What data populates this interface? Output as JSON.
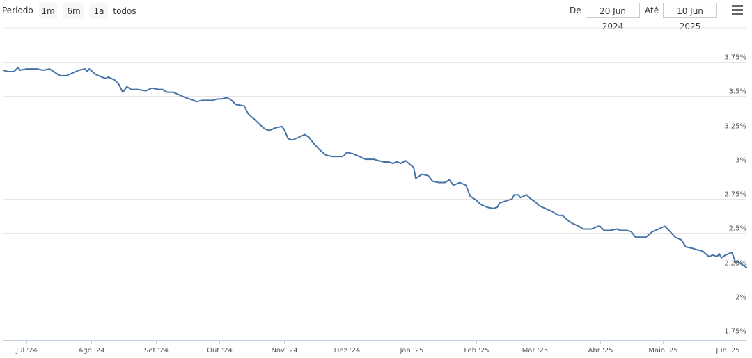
{
  "toolbar": {
    "range_label": "Periodo",
    "range_buttons": [
      "1m",
      "6m",
      "1a",
      "todos"
    ],
    "from_label": "De",
    "from_value": "20 Jun 2024",
    "to_label": "Até",
    "to_value": "10 Jun 2025",
    "menu_icon": "hamburger-menu-icon"
  },
  "chart_data": {
    "type": "line",
    "title": "",
    "xlabel": "",
    "ylabel": "",
    "xlim": [
      "2024-06-20",
      "2025-06-10"
    ],
    "ylim": [
      1.72,
      4.0
    ],
    "grid": true,
    "y_ticks": [
      {
        "value": 1.75,
        "label": "1.75%"
      },
      {
        "value": 2.0,
        "label": "2%"
      },
      {
        "value": 2.25,
        "label": "2.25%"
      },
      {
        "value": 2.5,
        "label": "2.5%"
      },
      {
        "value": 2.75,
        "label": "2.75%"
      },
      {
        "value": 3.0,
        "label": "3%"
      },
      {
        "value": 3.25,
        "label": "3.25%"
      },
      {
        "value": 3.5,
        "label": "3.5%"
      },
      {
        "value": 3.75,
        "label": "3.75%"
      }
    ],
    "x_ticks": [
      {
        "date": "2024-07-01",
        "label": "Jul '24"
      },
      {
        "date": "2024-08-01",
        "label": "Ago '24"
      },
      {
        "date": "2024-09-01",
        "label": "Set '24"
      },
      {
        "date": "2024-10-01",
        "label": "Out '24"
      },
      {
        "date": "2024-11-01",
        "label": "Nov '24"
      },
      {
        "date": "2024-12-01",
        "label": "Dez '24"
      },
      {
        "date": "2025-01-01",
        "label": "Jan '25"
      },
      {
        "date": "2025-02-01",
        "label": "Feb '25"
      },
      {
        "date": "2025-03-01",
        "label": "Mar '25"
      },
      {
        "date": "2025-04-01",
        "label": "Abr '25"
      },
      {
        "date": "2025-05-01",
        "label": "Maio '25"
      },
      {
        "date": "2025-06-01",
        "label": "Jun '25"
      }
    ],
    "series": [
      {
        "color": "#4572a7",
        "points": [
          [
            "2024-06-20",
            3.69
          ],
          [
            "2024-06-22",
            3.68
          ],
          [
            "2024-06-25",
            3.68
          ],
          [
            "2024-06-27",
            3.71
          ],
          [
            "2024-06-28",
            3.69
          ],
          [
            "2024-07-01",
            3.7
          ],
          [
            "2024-07-04",
            3.7
          ],
          [
            "2024-07-06",
            3.7
          ],
          [
            "2024-07-09",
            3.69
          ],
          [
            "2024-07-12",
            3.7
          ],
          [
            "2024-07-14",
            3.68
          ],
          [
            "2024-07-17",
            3.65
          ],
          [
            "2024-07-20",
            3.65
          ],
          [
            "2024-07-23",
            3.67
          ],
          [
            "2024-07-26",
            3.69
          ],
          [
            "2024-07-29",
            3.7
          ],
          [
            "2024-07-30",
            3.68
          ],
          [
            "2024-07-31",
            3.7
          ],
          [
            "2024-08-03",
            3.66
          ],
          [
            "2024-08-06",
            3.64
          ],
          [
            "2024-08-08",
            3.63
          ],
          [
            "2024-08-09",
            3.64
          ],
          [
            "2024-08-12",
            3.62
          ],
          [
            "2024-08-14",
            3.59
          ],
          [
            "2024-08-16",
            3.53
          ],
          [
            "2024-08-18",
            3.57
          ],
          [
            "2024-08-20",
            3.55
          ],
          [
            "2024-08-23",
            3.55
          ],
          [
            "2024-08-27",
            3.54
          ],
          [
            "2024-08-30",
            3.56
          ],
          [
            "2024-09-02",
            3.55
          ],
          [
            "2024-09-04",
            3.55
          ],
          [
            "2024-09-06",
            3.53
          ],
          [
            "2024-09-09",
            3.53
          ],
          [
            "2024-09-12",
            3.51
          ],
          [
            "2024-09-15",
            3.49
          ],
          [
            "2024-09-19",
            3.47
          ],
          [
            "2024-09-20",
            3.46
          ],
          [
            "2024-09-23",
            3.47
          ],
          [
            "2024-09-26",
            3.47
          ],
          [
            "2024-09-28",
            3.47
          ],
          [
            "2024-09-30",
            3.48
          ],
          [
            "2024-10-02",
            3.48
          ],
          [
            "2024-10-05",
            3.49
          ],
          [
            "2024-10-07",
            3.47
          ],
          [
            "2024-10-09",
            3.44
          ],
          [
            "2024-10-13",
            3.43
          ],
          [
            "2024-10-15",
            3.37
          ],
          [
            "2024-10-18",
            3.33
          ],
          [
            "2024-10-20",
            3.3
          ],
          [
            "2024-10-23",
            3.26
          ],
          [
            "2024-10-25",
            3.25
          ],
          [
            "2024-10-28",
            3.27
          ],
          [
            "2024-10-31",
            3.28
          ],
          [
            "2024-11-01",
            3.26
          ],
          [
            "2024-11-03",
            3.19
          ],
          [
            "2024-11-05",
            3.18
          ],
          [
            "2024-11-08",
            3.2
          ],
          [
            "2024-11-11",
            3.22
          ],
          [
            "2024-11-13",
            3.2
          ],
          [
            "2024-11-15",
            3.16
          ],
          [
            "2024-11-18",
            3.11
          ],
          [
            "2024-11-21",
            3.07
          ],
          [
            "2024-11-24",
            3.06
          ],
          [
            "2024-11-29",
            3.06
          ],
          [
            "2024-11-30",
            3.07
          ],
          [
            "2024-12-01",
            3.09
          ],
          [
            "2024-12-04",
            3.08
          ],
          [
            "2024-12-07",
            3.06
          ],
          [
            "2024-12-10",
            3.04
          ],
          [
            "2024-12-14",
            3.04
          ],
          [
            "2024-12-16",
            3.03
          ],
          [
            "2024-12-19",
            3.02
          ],
          [
            "2024-12-21",
            3.02
          ],
          [
            "2024-12-23",
            3.01
          ],
          [
            "2024-12-25",
            3.02
          ],
          [
            "2024-12-27",
            3.01
          ],
          [
            "2024-12-29",
            3.03
          ],
          [
            "2025-01-02",
            2.98
          ],
          [
            "2025-01-03",
            2.9
          ],
          [
            "2025-01-06",
            2.93
          ],
          [
            "2025-01-09",
            2.92
          ],
          [
            "2025-01-11",
            2.88
          ],
          [
            "2025-01-14",
            2.87
          ],
          [
            "2025-01-17",
            2.87
          ],
          [
            "2025-01-19",
            2.89
          ],
          [
            "2025-01-21",
            2.85
          ],
          [
            "2025-01-24",
            2.87
          ],
          [
            "2025-01-27",
            2.85
          ],
          [
            "2025-01-29",
            2.77
          ],
          [
            "2025-02-01",
            2.74
          ],
          [
            "2025-02-03",
            2.71
          ],
          [
            "2025-02-06",
            2.69
          ],
          [
            "2025-02-09",
            2.68
          ],
          [
            "2025-02-11",
            2.69
          ],
          [
            "2025-02-12",
            2.72
          ],
          [
            "2025-02-14",
            2.73
          ],
          [
            "2025-02-16",
            2.74
          ],
          [
            "2025-02-18",
            2.75
          ],
          [
            "2025-02-19",
            2.78
          ],
          [
            "2025-02-21",
            2.78
          ],
          [
            "2025-02-22",
            2.76
          ],
          [
            "2025-02-25",
            2.78
          ],
          [
            "2025-02-27",
            2.75
          ],
          [
            "2025-03-01",
            2.73
          ],
          [
            "2025-03-03",
            2.7
          ],
          [
            "2025-03-06",
            2.68
          ],
          [
            "2025-03-09",
            2.66
          ],
          [
            "2025-03-12",
            2.63
          ],
          [
            "2025-03-14",
            2.63
          ],
          [
            "2025-03-17",
            2.59
          ],
          [
            "2025-03-19",
            2.57
          ],
          [
            "2025-03-22",
            2.55
          ],
          [
            "2025-03-24",
            2.53
          ],
          [
            "2025-03-28",
            2.53
          ],
          [
            "2025-03-31",
            2.55
          ],
          [
            "2025-04-01",
            2.55
          ],
          [
            "2025-04-03",
            2.52
          ],
          [
            "2025-04-06",
            2.52
          ],
          [
            "2025-04-09",
            2.53
          ],
          [
            "2025-04-11",
            2.52
          ],
          [
            "2025-04-14",
            2.52
          ],
          [
            "2025-04-16",
            2.51
          ],
          [
            "2025-04-18",
            2.47
          ],
          [
            "2025-04-23",
            2.47
          ],
          [
            "2025-04-26",
            2.51
          ],
          [
            "2025-04-29",
            2.53
          ],
          [
            "2025-05-02",
            2.55
          ],
          [
            "2025-05-04",
            2.52
          ],
          [
            "2025-05-07",
            2.47
          ],
          [
            "2025-05-10",
            2.45
          ],
          [
            "2025-05-12",
            2.4
          ],
          [
            "2025-05-15",
            2.39
          ],
          [
            "2025-05-17",
            2.38
          ],
          [
            "2025-05-20",
            2.37
          ],
          [
            "2025-05-23",
            2.33
          ],
          [
            "2025-05-25",
            2.34
          ],
          [
            "2025-05-27",
            2.33
          ],
          [
            "2025-05-28",
            2.35
          ],
          [
            "2025-05-29",
            2.32
          ],
          [
            "2025-05-31",
            2.34
          ],
          [
            "2025-06-03",
            2.36
          ],
          [
            "2025-06-05",
            2.28
          ],
          [
            "2025-06-06",
            2.29
          ],
          [
            "2025-06-09",
            2.26
          ],
          [
            "2025-06-10",
            2.25
          ]
        ]
      }
    ]
  }
}
